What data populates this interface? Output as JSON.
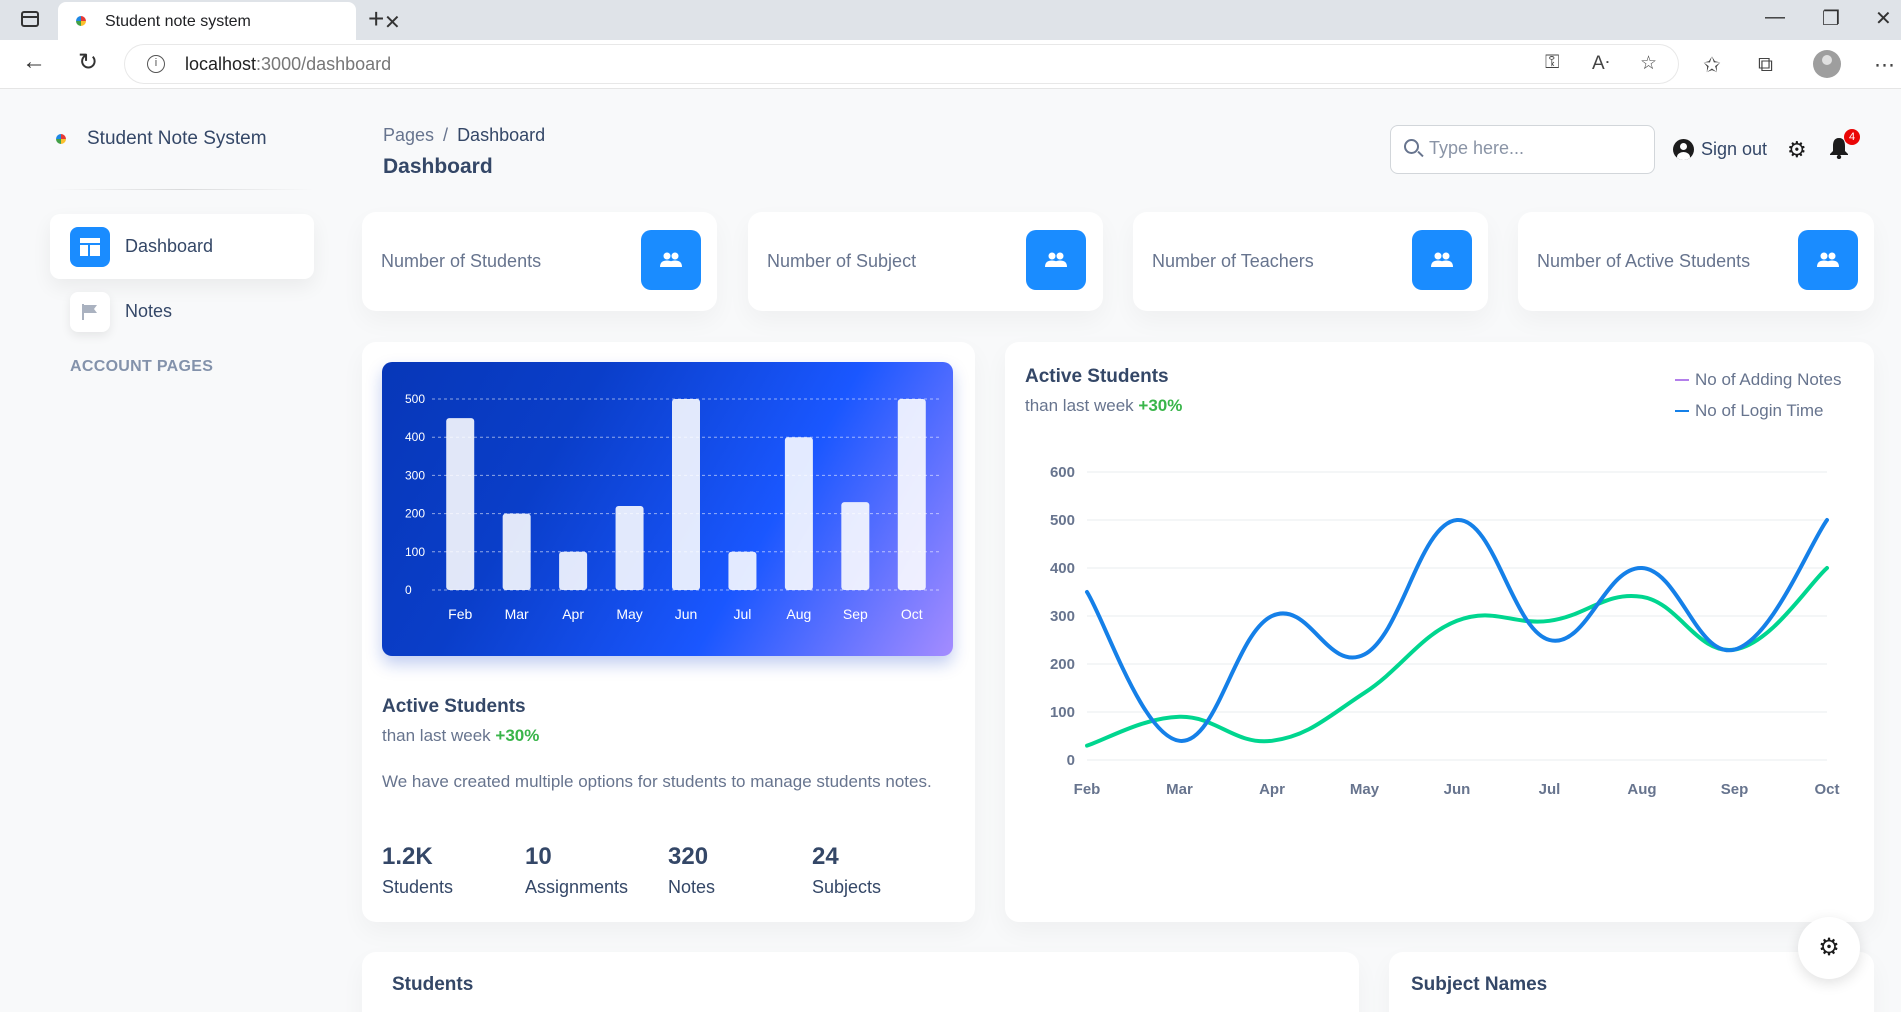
{
  "browser": {
    "tab_title": "Student note system",
    "url_host": "localhost",
    "url_path": ":3000/dashboard"
  },
  "sidebar": {
    "brand": "Student Note System",
    "items": [
      {
        "label": "Dashboard",
        "icon": "dashboard-icon",
        "active": true
      },
      {
        "label": "Notes",
        "icon": "flag-icon",
        "active": false
      }
    ],
    "section_title": "ACCOUNT PAGES"
  },
  "header": {
    "breadcrumb_root": "Pages",
    "breadcrumb_separator": "/",
    "breadcrumb_current": "Dashboard",
    "title": "Dashboard",
    "search_placeholder": "Type here...",
    "signout_label": "Sign out",
    "notification_count": "4"
  },
  "stats": [
    {
      "label": "Number of Students",
      "icon": "users-icon"
    },
    {
      "label": "Number of Subject",
      "icon": "users-icon"
    },
    {
      "label": "Number of Teachers",
      "icon": "users-icon"
    },
    {
      "label": "Number of Active Students",
      "icon": "users-icon"
    }
  ],
  "colors": {
    "accent": "#1a8cff",
    "positive": "#39b54a",
    "series_notes": "#00d68f",
    "series_login": "#1580e8",
    "legend_notes": "#b37feb"
  },
  "active_card": {
    "title": "Active Students",
    "sub_prefix": "than last week",
    "sub_change": "+30%",
    "description": "We have created multiple options for students to manage students notes.",
    "metrics": [
      {
        "value": "1.2K",
        "label": "Students"
      },
      {
        "value": "10",
        "label": "Assignments"
      },
      {
        "value": "320",
        "label": "Notes"
      },
      {
        "value": "24",
        "label": "Subjects"
      }
    ]
  },
  "line_card": {
    "title": "Active Students",
    "sub_prefix": "than last week",
    "sub_change": "+30%",
    "legend": [
      "No of Adding Notes",
      "No of Login Time"
    ]
  },
  "bottom": {
    "students_title": "Students",
    "subjects_title": "Subject Names"
  },
  "chart_data": [
    {
      "type": "bar",
      "title": "",
      "categories": [
        "Feb",
        "Mar",
        "Apr",
        "May",
        "Jun",
        "Jul",
        "Aug",
        "Sep",
        "Oct"
      ],
      "values": [
        450,
        200,
        100,
        220,
        500,
        100,
        400,
        230,
        500
      ],
      "ylim": [
        0,
        500
      ],
      "yticks": [
        0,
        100,
        200,
        300,
        400,
        500
      ],
      "xlabel": "",
      "ylabel": ""
    },
    {
      "type": "line",
      "title": "Active Students",
      "categories": [
        "Feb",
        "Mar",
        "Apr",
        "May",
        "Jun",
        "Jul",
        "Aug",
        "Sep",
        "Oct"
      ],
      "series": [
        {
          "name": "No of Adding Notes",
          "values": [
            30,
            90,
            40,
            140,
            290,
            290,
            340,
            230,
            400
          ]
        },
        {
          "name": "No of Login Time",
          "values": [
            350,
            40,
            300,
            220,
            500,
            250,
            400,
            230,
            500
          ]
        }
      ],
      "ylim": [
        0,
        600
      ],
      "yticks": [
        0,
        100,
        200,
        300,
        400,
        500,
        600
      ],
      "legend": "top-right",
      "xlabel": "",
      "ylabel": ""
    }
  ]
}
